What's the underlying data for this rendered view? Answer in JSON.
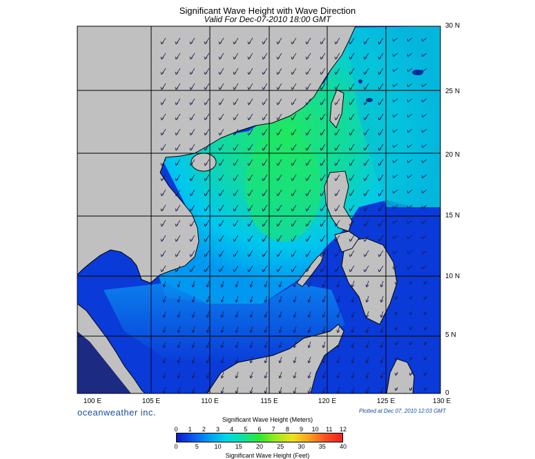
{
  "header": {
    "title": "Significant Wave Height with Wave Direction",
    "subtitle": "Valid For Dec-07-2010 18:00 GMT"
  },
  "axes": {
    "lat_labels": [
      "30 N",
      "25 N",
      "20 N",
      "15 N",
      "10 N",
      "5 N",
      "0"
    ],
    "lon_labels": [
      "100 E",
      "105 E",
      "110 E",
      "115 E",
      "120 E",
      "125 E",
      "130 E"
    ]
  },
  "footer": {
    "brand": "oceanweather inc.",
    "plotted": "Plotted at Dec 07, 2010 12:03 GMT"
  },
  "legend": {
    "meters_title": "Significant Wave Height (Meters)",
    "feet_title": "Significant Wave Height (Feet)",
    "meters_ticks": [
      "0",
      "1",
      "2",
      "3",
      "4",
      "5",
      "6",
      "7",
      "8",
      "9",
      "10",
      "11",
      "12"
    ],
    "feet_ticks": [
      "0",
      "5",
      "10",
      "15",
      "20",
      "25",
      "30",
      "35",
      "40"
    ]
  },
  "colors": {
    "land": "#c0c0c0",
    "coast": "#000000",
    "low": "#0a2ad8",
    "mid": "#00ccee",
    "high": "#20e860"
  }
}
